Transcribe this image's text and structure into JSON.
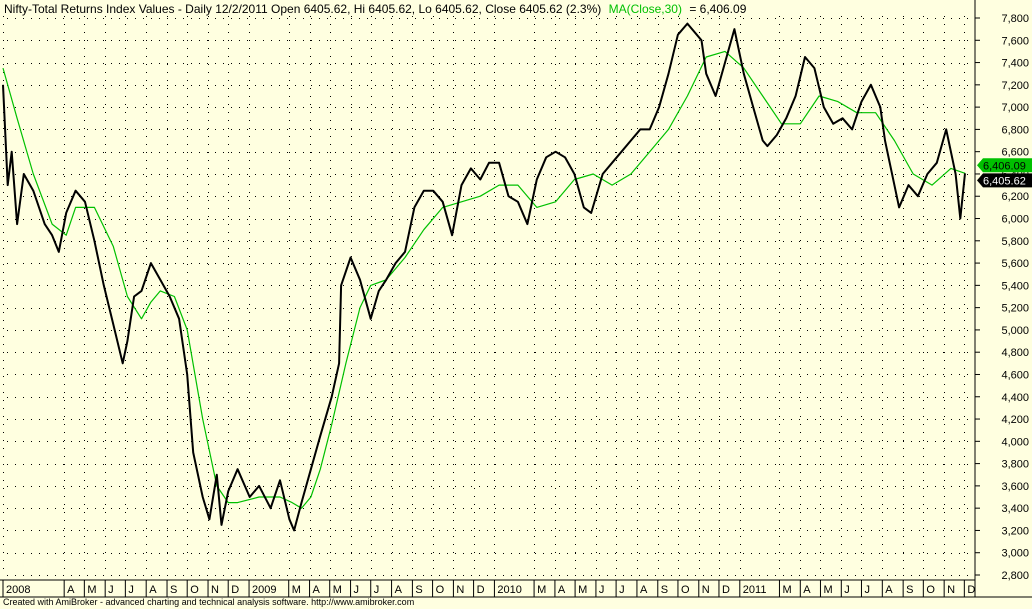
{
  "header": {
    "title_prefix": "Nifty-Total Returns Index Values - Daily 12/2/2011 Open 6405.62, Hi 6405.62, Lo 6405.62, Close 6405.62 (2.3%)",
    "ma_label": "MA(Close,30)",
    "ma_value_text": "= 6,406.09"
  },
  "footer": {
    "credit": "Created with AmiBroker - advanced charting and technical analysis software. http://www.amibroker.com"
  },
  "badges": {
    "ma_value": "6,406.09",
    "close_value": "6,405.62"
  },
  "colors": {
    "background": "#FFFFE0",
    "price_line": "#000000",
    "ma_line": "#00C000",
    "ma_badge": "#00C000",
    "close_badge": "#000000"
  },
  "chart_data": {
    "type": "line",
    "title": "Nifty-Total Returns Index Values - Daily 12/2/2011 Open 6405.62, Hi 6405.62, Lo 6405.62, Close 6405.62 (2.3%)",
    "xlabel": "",
    "ylabel": "",
    "ylim": [
      2800,
      7800
    ],
    "y_ticks": [
      2800,
      3000,
      3200,
      3400,
      3600,
      3800,
      4000,
      4200,
      4400,
      4600,
      4800,
      5000,
      5200,
      5400,
      5600,
      5800,
      6000,
      6200,
      6400,
      6600,
      6800,
      7000,
      7200,
      7400,
      7600,
      7800
    ],
    "y_tick_labels": [
      "2,800",
      "3,000",
      "3,200",
      "3,400",
      "3,600",
      "3,800",
      "4,000",
      "4,200",
      "4,400",
      "4,600",
      "4,800",
      "5,000",
      "5,200",
      "5,400",
      "5,600",
      "5,800",
      "6,000",
      "6,200",
      "6,400",
      "6,600",
      "6,800",
      "7,000",
      "7,200",
      "7,400",
      "7,600",
      "7,800"
    ],
    "xlim": [
      "2008-01-01",
      "2011-12-02"
    ],
    "x_ticks": [
      {
        "label": "2008",
        "date": "2008-01-01"
      },
      {
        "label": "A",
        "date": "2008-04-01"
      },
      {
        "label": "M",
        "date": "2008-05-01"
      },
      {
        "label": "J",
        "date": "2008-06-01"
      },
      {
        "label": "J",
        "date": "2008-07-01"
      },
      {
        "label": "A",
        "date": "2008-08-01"
      },
      {
        "label": "S",
        "date": "2008-09-01"
      },
      {
        "label": "O",
        "date": "2008-10-01"
      },
      {
        "label": "N",
        "date": "2008-11-01"
      },
      {
        "label": "D",
        "date": "2008-12-01"
      },
      {
        "label": "2009",
        "date": "2009-01-01"
      },
      {
        "label": "M",
        "date": "2009-03-01"
      },
      {
        "label": "A",
        "date": "2009-04-01"
      },
      {
        "label": "M",
        "date": "2009-05-01"
      },
      {
        "label": "J",
        "date": "2009-06-01"
      },
      {
        "label": "J",
        "date": "2009-07-01"
      },
      {
        "label": "A",
        "date": "2009-08-01"
      },
      {
        "label": "S",
        "date": "2009-09-01"
      },
      {
        "label": "O",
        "date": "2009-10-01"
      },
      {
        "label": "N",
        "date": "2009-11-01"
      },
      {
        "label": "D",
        "date": "2009-12-01"
      },
      {
        "label": "2010",
        "date": "2010-01-01"
      },
      {
        "label": "M",
        "date": "2010-03-01"
      },
      {
        "label": "A",
        "date": "2010-04-01"
      },
      {
        "label": "M",
        "date": "2010-05-01"
      },
      {
        "label": "J",
        "date": "2010-06-01"
      },
      {
        "label": "J",
        "date": "2010-07-01"
      },
      {
        "label": "A",
        "date": "2010-08-01"
      },
      {
        "label": "S",
        "date": "2010-09-01"
      },
      {
        "label": "O",
        "date": "2010-10-01"
      },
      {
        "label": "N",
        "date": "2010-11-01"
      },
      {
        "label": "D",
        "date": "2010-12-01"
      },
      {
        "label": "2011",
        "date": "2011-01-01"
      },
      {
        "label": "M",
        "date": "2011-03-01"
      },
      {
        "label": "A",
        "date": "2011-04-01"
      },
      {
        "label": "M",
        "date": "2011-05-01"
      },
      {
        "label": "J",
        "date": "2011-06-01"
      },
      {
        "label": "J",
        "date": "2011-07-01"
      },
      {
        "label": "A",
        "date": "2011-08-01"
      },
      {
        "label": "S",
        "date": "2011-09-01"
      },
      {
        "label": "O",
        "date": "2011-10-01"
      },
      {
        "label": "N",
        "date": "2011-11-01"
      },
      {
        "label": "D",
        "date": "2011-12-01"
      }
    ],
    "grid": true,
    "legend": "none",
    "series": [
      {
        "name": "",
        "color": "#000000",
        "x": [
          "2008-01-01",
          "2008-01-08",
          "2008-01-14",
          "2008-01-22",
          "2008-02-01",
          "2008-02-15",
          "2008-03-03",
          "2008-03-14",
          "2008-03-24",
          "2008-04-04",
          "2008-04-18",
          "2008-05-02",
          "2008-05-16",
          "2008-05-30",
          "2008-06-13",
          "2008-06-27",
          "2008-07-04",
          "2008-07-14",
          "2008-07-25",
          "2008-08-08",
          "2008-08-22",
          "2008-09-05",
          "2008-09-19",
          "2008-10-01",
          "2008-10-10",
          "2008-10-24",
          "2008-11-03",
          "2008-11-14",
          "2008-11-21",
          "2008-12-01",
          "2008-12-15",
          "2009-01-02",
          "2009-01-16",
          "2009-02-02",
          "2009-02-16",
          "2009-03-02",
          "2009-03-09",
          "2009-03-20",
          "2009-04-03",
          "2009-04-17",
          "2009-05-04",
          "2009-05-15",
          "2009-05-18",
          "2009-06-01",
          "2009-06-15",
          "2009-07-01",
          "2009-07-13",
          "2009-07-24",
          "2009-08-07",
          "2009-08-21",
          "2009-09-04",
          "2009-09-18",
          "2009-10-02",
          "2009-10-16",
          "2009-10-30",
          "2009-11-13",
          "2009-11-27",
          "2009-12-11",
          "2009-12-24",
          "2010-01-08",
          "2010-01-22",
          "2010-02-05",
          "2010-02-19",
          "2010-03-05",
          "2010-03-19",
          "2010-04-02",
          "2010-04-16",
          "2010-04-30",
          "2010-05-14",
          "2010-05-25",
          "2010-06-11",
          "2010-06-25",
          "2010-07-09",
          "2010-07-23",
          "2010-08-06",
          "2010-08-20",
          "2010-09-03",
          "2010-09-17",
          "2010-10-01",
          "2010-10-15",
          "2010-11-05",
          "2010-11-12",
          "2010-11-26",
          "2010-12-10",
          "2010-12-24",
          "2011-01-07",
          "2011-01-21",
          "2011-02-04",
          "2011-02-11",
          "2011-02-25",
          "2011-03-11",
          "2011-03-25",
          "2011-04-08",
          "2011-04-22",
          "2011-05-06",
          "2011-05-20",
          "2011-06-03",
          "2011-06-17",
          "2011-07-01",
          "2011-07-15",
          "2011-07-29",
          "2011-08-05",
          "2011-08-19",
          "2011-08-26",
          "2011-09-09",
          "2011-09-23",
          "2011-10-07",
          "2011-10-21",
          "2011-11-04",
          "2011-11-18",
          "2011-11-25",
          "2011-12-02"
        ],
        "values": [
          7200,
          6300,
          6600,
          5950,
          6400,
          6250,
          5950,
          5850,
          5700,
          6050,
          6250,
          6150,
          5800,
          5400,
          5050,
          4700,
          4900,
          5300,
          5350,
          5600,
          5450,
          5300,
          5100,
          4600,
          3900,
          3500,
          3300,
          3700,
          3250,
          3550,
          3750,
          3500,
          3600,
          3400,
          3650,
          3300,
          3200,
          3450,
          3750,
          4050,
          4400,
          4700,
          5400,
          5650,
          5450,
          5100,
          5350,
          5450,
          5600,
          5700,
          6100,
          6250,
          6250,
          6150,
          5850,
          6300,
          6450,
          6350,
          6500,
          6500,
          6200,
          6150,
          5950,
          6350,
          6550,
          6600,
          6550,
          6400,
          6100,
          6050,
          6400,
          6500,
          6600,
          6700,
          6800,
          6800,
          7000,
          7300,
          7650,
          7750,
          7600,
          7300,
          7100,
          7400,
          7700,
          7300,
          7000,
          6700,
          6650,
          6750,
          6900,
          7100,
          7450,
          7350,
          7000,
          6850,
          6900,
          6800,
          7050,
          7200,
          7000,
          6700,
          6300,
          6100,
          6300,
          6200,
          6400,
          6500,
          6800,
          6400,
          6000,
          6405.62
        ]
      },
      {
        "name": "MA(Close,30)",
        "color": "#00C000",
        "x": [
          "2008-01-01",
          "2008-01-22",
          "2008-02-15",
          "2008-03-14",
          "2008-04-04",
          "2008-04-18",
          "2008-05-16",
          "2008-06-13",
          "2008-07-04",
          "2008-07-25",
          "2008-08-08",
          "2008-08-22",
          "2008-09-12",
          "2008-10-01",
          "2008-10-24",
          "2008-11-14",
          "2008-12-01",
          "2008-12-15",
          "2009-01-16",
          "2009-02-16",
          "2009-03-06",
          "2009-03-20",
          "2009-04-03",
          "2009-04-17",
          "2009-05-04",
          "2009-05-25",
          "2009-06-15",
          "2009-07-01",
          "2009-07-24",
          "2009-08-21",
          "2009-09-18",
          "2009-10-16",
          "2009-11-13",
          "2009-12-11",
          "2010-01-08",
          "2010-02-05",
          "2010-03-05",
          "2010-04-02",
          "2010-04-30",
          "2010-05-28",
          "2010-06-25",
          "2010-07-23",
          "2010-08-20",
          "2010-09-17",
          "2010-10-15",
          "2010-11-12",
          "2010-12-10",
          "2011-01-07",
          "2011-02-04",
          "2011-03-04",
          "2011-04-01",
          "2011-04-29",
          "2011-05-27",
          "2011-06-24",
          "2011-07-22",
          "2011-08-19",
          "2011-09-16",
          "2011-10-14",
          "2011-11-11",
          "2011-12-02"
        ],
        "values": [
          7350,
          6900,
          6400,
          5950,
          5850,
          6100,
          6100,
          5750,
          5300,
          5100,
          5250,
          5350,
          5300,
          5000,
          4200,
          3600,
          3450,
          3450,
          3500,
          3500,
          3450,
          3400,
          3500,
          3750,
          4150,
          4700,
          5200,
          5400,
          5450,
          5650,
          5900,
          6100,
          6150,
          6200,
          6300,
          6300,
          6100,
          6150,
          6350,
          6400,
          6300,
          6400,
          6600,
          6800,
          7100,
          7450,
          7500,
          7350,
          7100,
          6850,
          6850,
          7100,
          7050,
          6950,
          6950,
          6700,
          6400,
          6300,
          6450,
          6406.09
        ]
      }
    ]
  }
}
